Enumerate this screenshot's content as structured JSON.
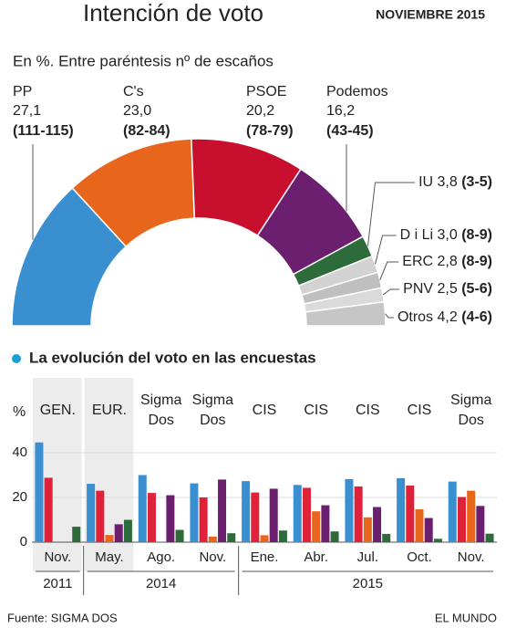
{
  "header": {
    "title": "Intención de voto",
    "date": "NOVIEMBRE 2015",
    "subtitle": "En %. Entre paréntesis nº de escaños"
  },
  "chart_data": [
    {
      "type": "pie",
      "shape": "semicircle",
      "categories": [
        "PP",
        "C's",
        "PSOE",
        "Podemos",
        "IU",
        "D i Li",
        "ERC",
        "PNV",
        "Otros"
      ],
      "values": [
        27.1,
        23.0,
        20.2,
        16.2,
        3.8,
        3.0,
        2.8,
        2.5,
        4.2
      ],
      "value_labels": [
        "27,1",
        "23,0",
        "20,2",
        "16,2",
        "3,8",
        "3,0",
        "2,8",
        "2,5",
        "4,2"
      ],
      "seats": [
        "(111-115)",
        "(82-84)",
        "(78-79)",
        "(43-45)",
        "(3-5)",
        "(8-9)",
        "(8-9)",
        "(5-6)",
        "(4-6)"
      ],
      "colors": [
        "#3a8fd1",
        "#e8661c",
        "#c8102e",
        "#6b1f6e",
        "#2e6b3a",
        "#d2d2d2",
        "#bfbfbf",
        "#dadada",
        "#c6c6c6"
      ]
    },
    {
      "type": "bar",
      "title": "La evolución del voto en las encuestas",
      "ylabel": "%",
      "groups": [
        "GEN.",
        "EUR.",
        "Sigma Dos",
        "Sigma Dos",
        "CIS",
        "CIS",
        "CIS",
        "CIS",
        "Sigma Dos"
      ],
      "categories": [
        "Nov.",
        "May.",
        "Ago.",
        "Nov.",
        "Ene.",
        "Abr.",
        "Jul.",
        "Oct.",
        "Nov."
      ],
      "years": [
        {
          "label": "2011",
          "count": 1
        },
        {
          "label": "2014",
          "count": 3
        },
        {
          "label": "2015",
          "count": 5
        }
      ],
      "ylim": [
        0,
        50
      ],
      "yticks": [
        0,
        20,
        40
      ],
      "grid": true,
      "series": [
        {
          "color": "#3a8fd1",
          "values": [
            44.6,
            26.1,
            30.0,
            26.3,
            27.3,
            25.6,
            28.2,
            28.6,
            27.1
          ]
        },
        {
          "color": "#e0213a",
          "values": [
            28.8,
            23.0,
            22.0,
            20.0,
            22.2,
            24.3,
            24.9,
            25.3,
            20.2
          ]
        },
        {
          "color": "#e8661c",
          "values": [
            null,
            3.2,
            null,
            2.5,
            3.1,
            13.8,
            11.1,
            14.7,
            23.0
          ]
        },
        {
          "color": "#6b1f6e",
          "values": [
            null,
            8.0,
            21.0,
            28.0,
            23.9,
            16.5,
            15.7,
            10.8,
            16.2
          ]
        },
        {
          "color": "#2e6b3a",
          "values": [
            6.9,
            10.0,
            5.5,
            4.0,
            5.2,
            4.8,
            3.7,
            1.5,
            3.8
          ]
        }
      ]
    }
  ],
  "footer": {
    "source": "Fuente: SIGMA DOS",
    "brand": "EL MUNDO"
  }
}
